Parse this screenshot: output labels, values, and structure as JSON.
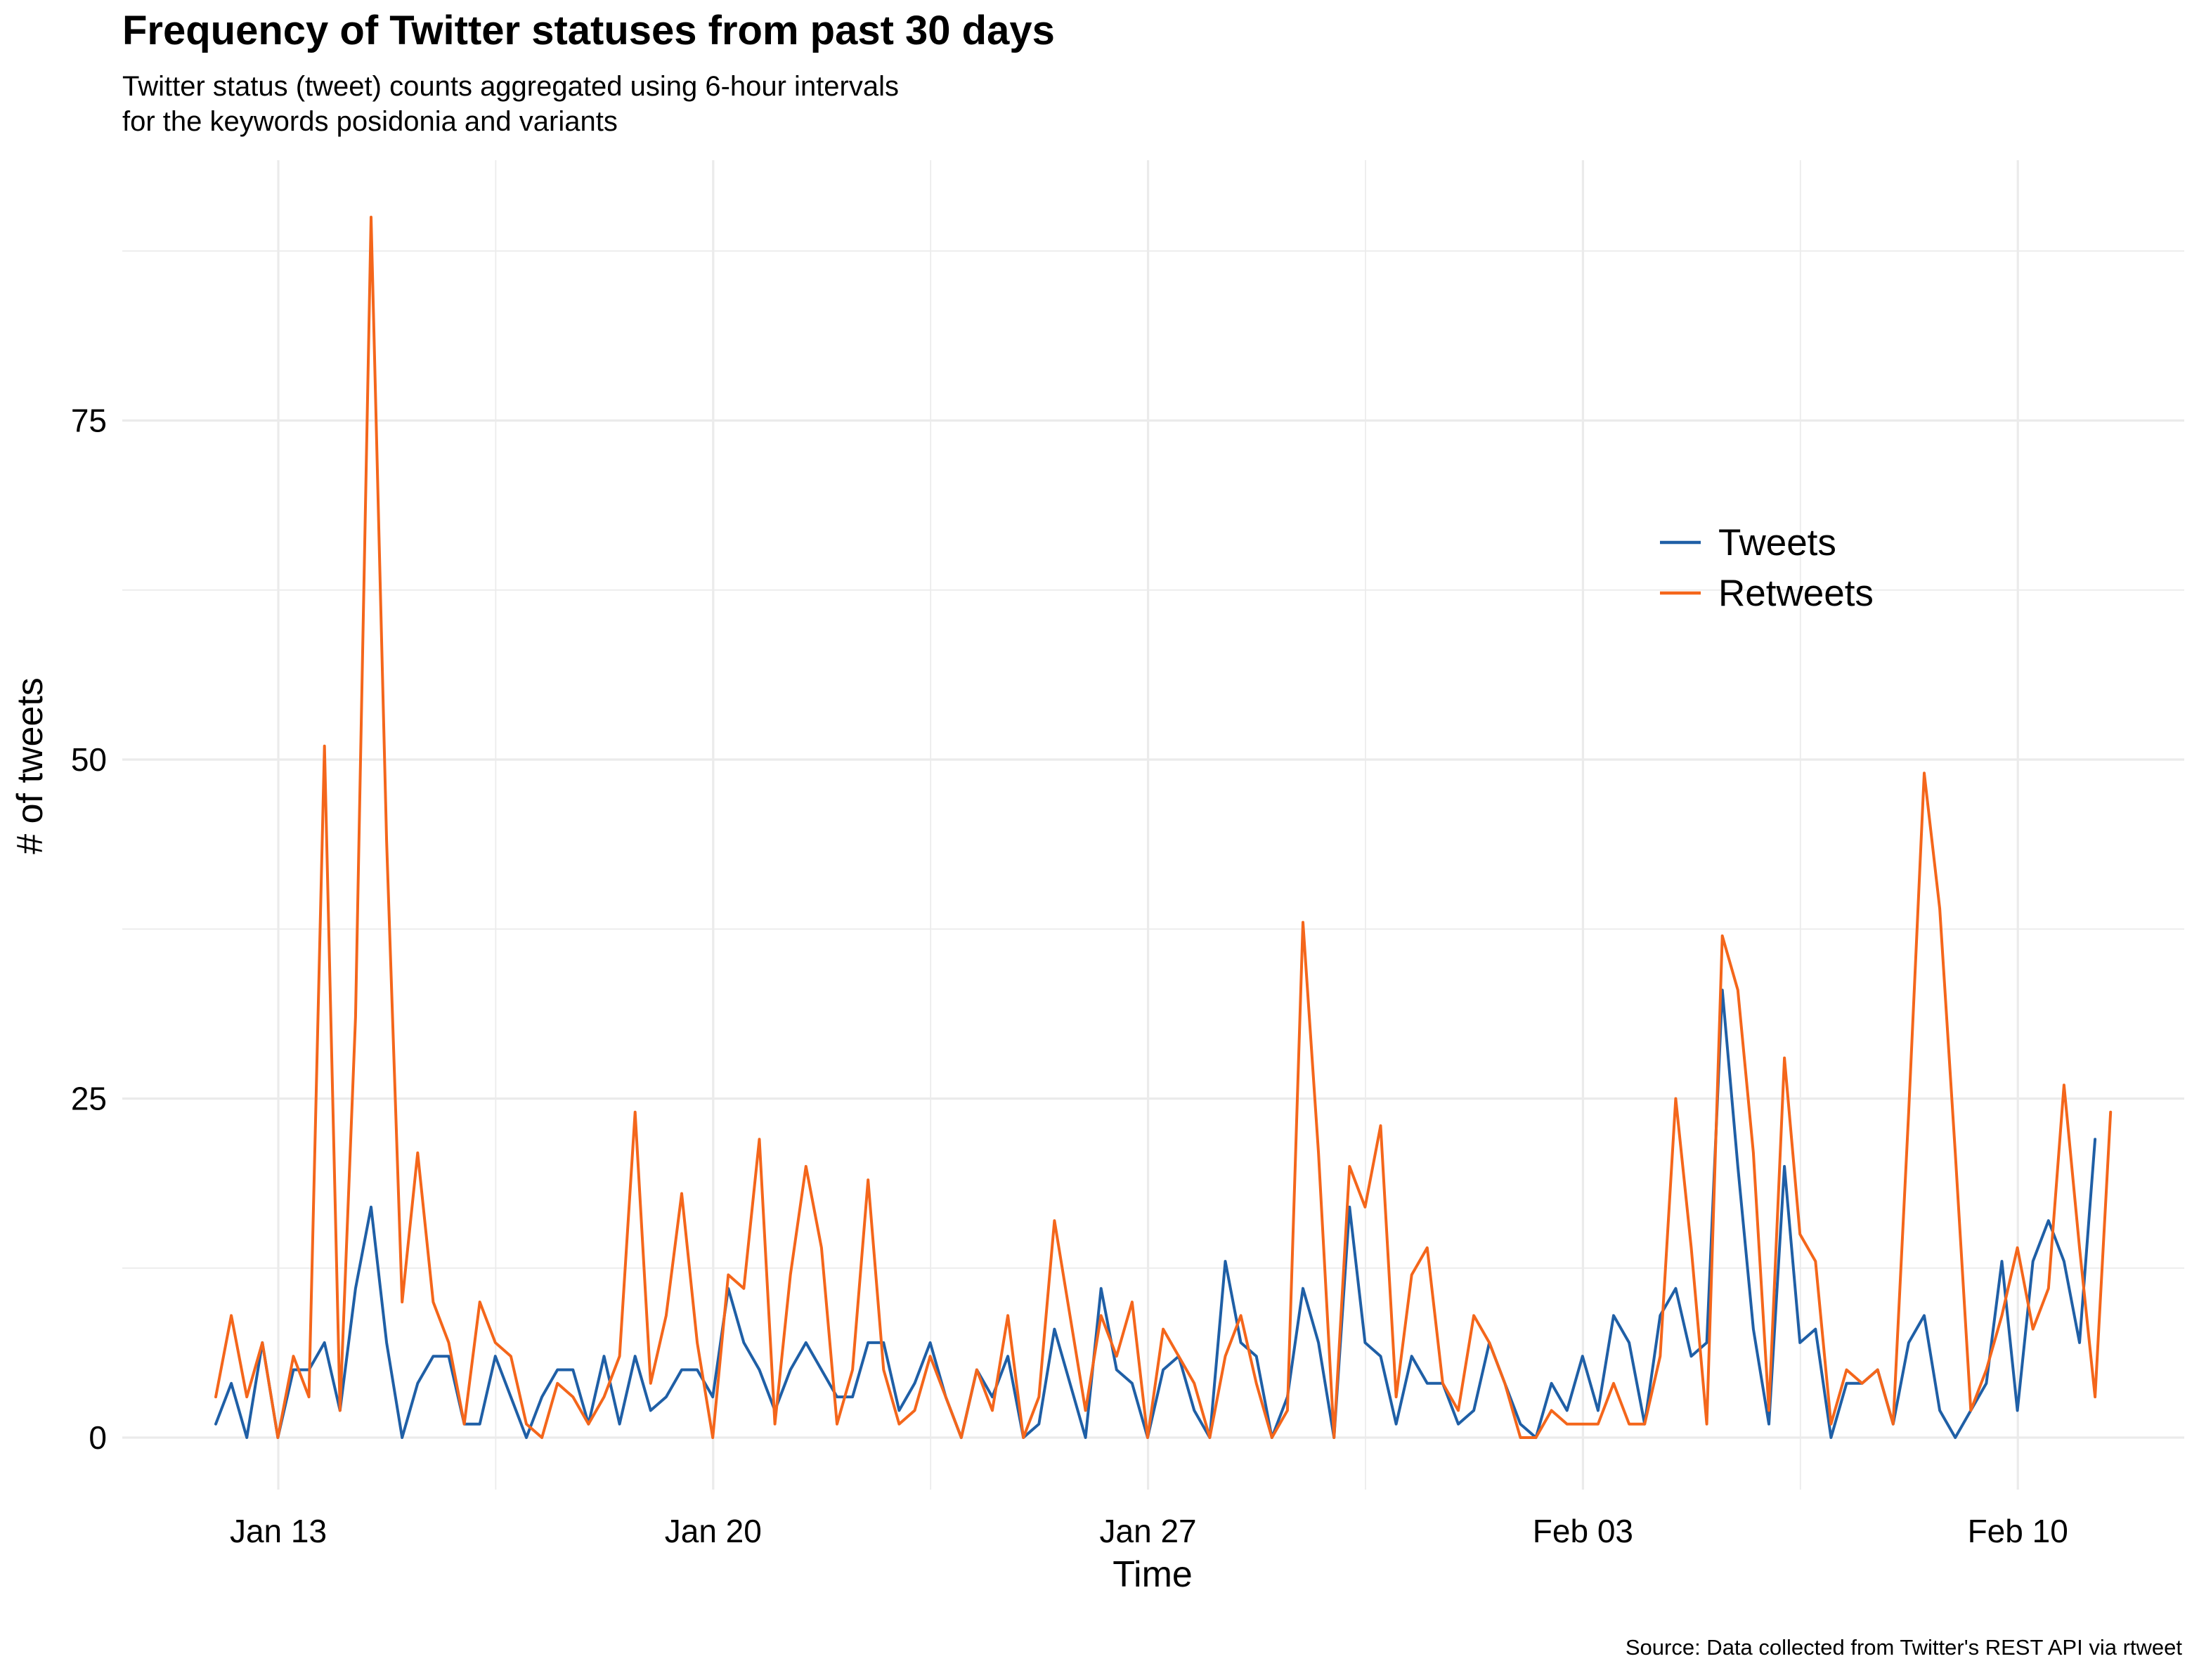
{
  "chart_data": {
    "type": "line",
    "title": "Frequency of Twitter statuses from past 30 days",
    "subtitle_lines": [
      "Twitter status (tweet) counts aggregated using 6-hour intervals",
      "for the keywords posidonia and variants"
    ],
    "caption": "Source: Data collected from Twitter's REST API via rtweet",
    "xlabel": "Time",
    "ylabel": "# of tweets",
    "x_start": "2019-01-12T06:00",
    "x_interval_hours": 6,
    "x_ticks": [
      "Jan 13",
      "Jan 20",
      "Jan 27",
      "Feb 03",
      "Feb 10"
    ],
    "y_ticks": [
      "0",
      "25",
      "50",
      "75"
    ],
    "ylim": [
      -4,
      96
    ],
    "grid": true,
    "legend_position": "right",
    "series": [
      {
        "name": "Tweets",
        "color": "#1f5fa6",
        "values": [
          1,
          4,
          0,
          7,
          0,
          5,
          5,
          7,
          2,
          11,
          17,
          7,
          0,
          4,
          6,
          6,
          1,
          1,
          6,
          3,
          0,
          3,
          5,
          5,
          1,
          6,
          1,
          6,
          2,
          3,
          5,
          5,
          3,
          11,
          7,
          5,
          2,
          5,
          7,
          5,
          3,
          3,
          7,
          7,
          2,
          4,
          7,
          3,
          0,
          5,
          3,
          6,
          0,
          1,
          8,
          4,
          0,
          11,
          5,
          4,
          0,
          5,
          6,
          2,
          0,
          13,
          7,
          6,
          0,
          3,
          11,
          7,
          0,
          17,
          7,
          6,
          1,
          6,
          4,
          4,
          1,
          2,
          7,
          4,
          1,
          0,
          4,
          2,
          6,
          2,
          9,
          7,
          1,
          9,
          11,
          6,
          7,
          33,
          20,
          8,
          1,
          20,
          7,
          8,
          0,
          4,
          4,
          5,
          1,
          7,
          9,
          2,
          0,
          2,
          4,
          13,
          2,
          13,
          16,
          13,
          7,
          22
        ]
      },
      {
        "name": "Retweets",
        "color": "#f4661b",
        "values": [
          3,
          9,
          3,
          7,
          0,
          6,
          3,
          51,
          2,
          31,
          90,
          44,
          10,
          21,
          10,
          7,
          1,
          10,
          7,
          6,
          1,
          0,
          4,
          3,
          1,
          3,
          6,
          24,
          4,
          9,
          18,
          7,
          0,
          12,
          11,
          22,
          1,
          12,
          20,
          14,
          1,
          5,
          19,
          5,
          1,
          2,
          6,
          3,
          0,
          5,
          2,
          9,
          0,
          3,
          16,
          9,
          2,
          9,
          6,
          10,
          0,
          8,
          6,
          4,
          0,
          6,
          9,
          4,
          0,
          2,
          38,
          21,
          0,
          20,
          17,
          23,
          3,
          12,
          14,
          4,
          2,
          9,
          7,
          4,
          0,
          0,
          2,
          1,
          1,
          1,
          4,
          1,
          1,
          6,
          25,
          14,
          1,
          37,
          33,
          21,
          2,
          28,
          15,
          13,
          1,
          5,
          4,
          5,
          1,
          24,
          49,
          39,
          21,
          2,
          5,
          9,
          14,
          8,
          11,
          26,
          14,
          3,
          24
        ]
      }
    ]
  }
}
